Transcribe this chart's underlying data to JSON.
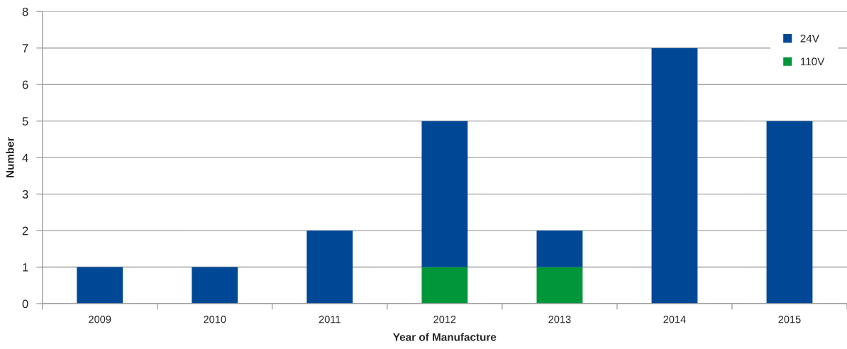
{
  "chart_data": {
    "type": "bar",
    "stacked": true,
    "xlabel": "Year of Manufacture",
    "ylabel": "Number",
    "categories": [
      "2009",
      "2010",
      "2011",
      "2012",
      "2013",
      "2014",
      "2015"
    ],
    "series": [
      {
        "name": "110V",
        "color": "#00963a",
        "values": [
          0,
          0,
          0,
          1,
          1,
          0,
          0
        ]
      },
      {
        "name": "24V",
        "color": "#004896",
        "values": [
          1,
          1,
          2,
          4,
          1,
          7,
          5
        ]
      }
    ],
    "ylim": [
      0,
      8
    ],
    "yticks": [
      0,
      1,
      2,
      3,
      4,
      5,
      6,
      7,
      8
    ],
    "grid": "y",
    "legend": "top right"
  }
}
